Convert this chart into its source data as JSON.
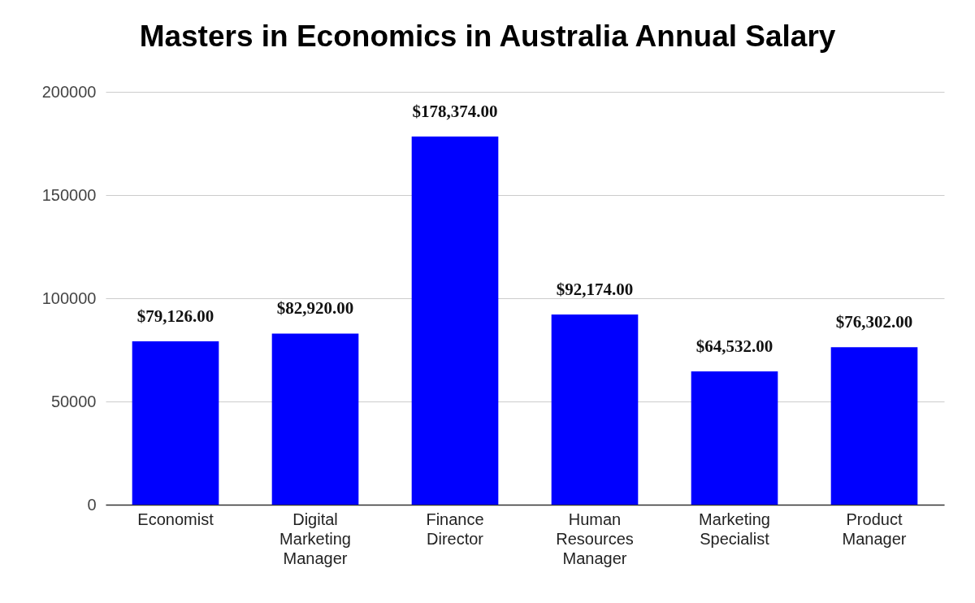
{
  "chart_data": {
    "type": "bar",
    "title": "Masters in Economics in Australia Annual Salary",
    "categories": [
      "Economist",
      "Digital Marketing Manager",
      "Finance Director",
      "Human Resources Manager",
      "Marketing Specialist",
      "Product Manager"
    ],
    "values": [
      79126,
      82920,
      178374,
      92174,
      64532,
      76302
    ],
    "value_labels": [
      "$79,126.00",
      "$82,920.00",
      "$178,374.00",
      "$92,174.00",
      "$64,532.00",
      "$76,302.00"
    ],
    "color": "#0000ff",
    "ylim": [
      0,
      200000
    ],
    "yticks": [
      0,
      50000,
      100000,
      150000,
      200000
    ],
    "grid": "y"
  }
}
